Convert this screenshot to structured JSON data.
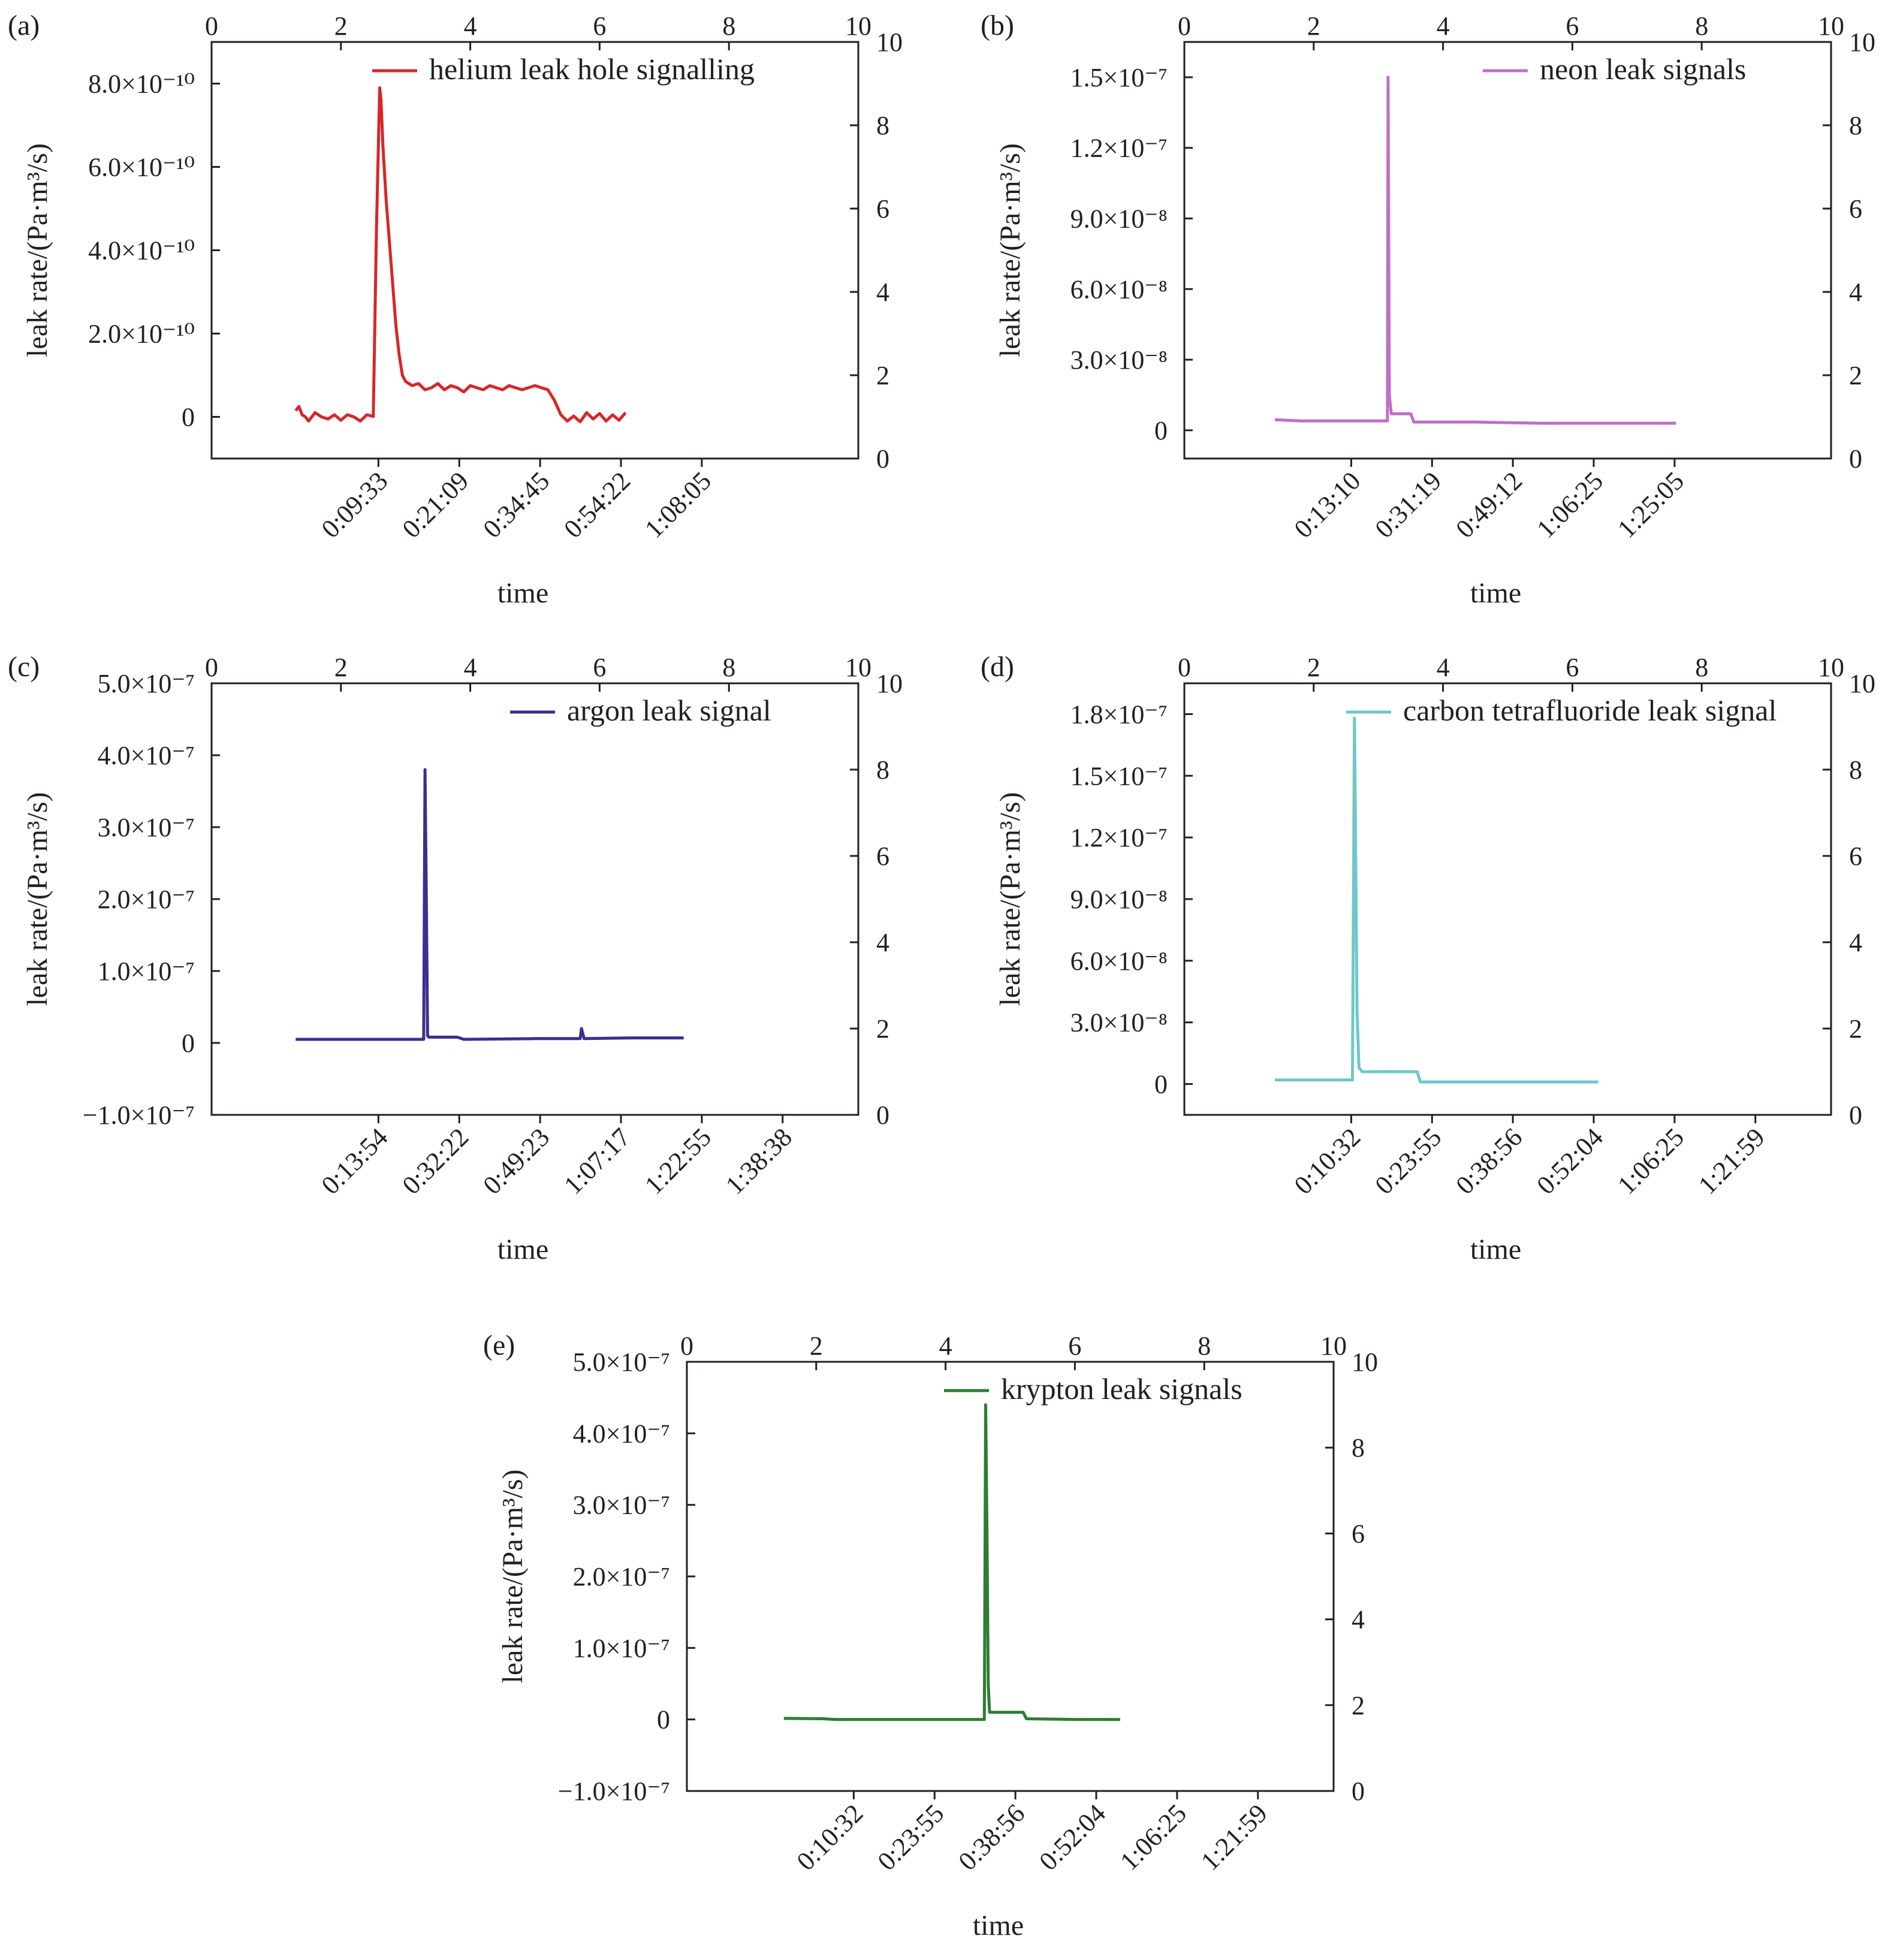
{
  "figure": {
    "panels": [
      {
        "letter": "(a)",
        "legend": "helium leak hole signalling",
        "color": "#d62728",
        "ylabel": "leak rate/(Pa·m³/s)",
        "xlabel": "time",
        "top_ticks": [
          "0",
          "2",
          "4",
          "6",
          "8",
          "10"
        ],
        "right_ticks": [
          "0",
          "2",
          "4",
          "6",
          "8",
          "10"
        ],
        "y_ticks": [
          {
            "v": 0,
            "label": "0"
          },
          {
            "v": 2e-10,
            "label": "2.0×10⁻¹⁰"
          },
          {
            "v": 4e-10,
            "label": "4.0×10⁻¹⁰"
          },
          {
            "v": 6e-10,
            "label": "6.0×10⁻¹⁰"
          },
          {
            "v": 8e-10,
            "label": "8.0×10⁻¹⁰"
          }
        ],
        "x_ticks": [
          "0:09:33",
          "0:21:09",
          "0:34:45",
          "0:54:22",
          "1:08:05"
        ]
      },
      {
        "letter": "(b)",
        "legend": "neon leak signals",
        "color": "#bf6fc8",
        "ylabel": "leak rate/(Pa·m³/s)",
        "xlabel": "time",
        "top_ticks": [
          "0",
          "2",
          "4",
          "6",
          "8",
          "10"
        ],
        "right_ticks": [
          "0",
          "2",
          "4",
          "6",
          "8",
          "10"
        ],
        "y_ticks": [
          {
            "v": 0,
            "label": "0"
          },
          {
            "v": 3e-08,
            "label": "3.0×10⁻⁸"
          },
          {
            "v": 6e-08,
            "label": "6.0×10⁻⁸"
          },
          {
            "v": 9e-08,
            "label": "9.0×10⁻⁸"
          },
          {
            "v": 1.2e-07,
            "label": "1.2×10⁻⁷"
          },
          {
            "v": 1.5e-07,
            "label": "1.5×10⁻⁷"
          }
        ],
        "x_ticks": [
          "0:13:10",
          "0:31:19",
          "0:49:12",
          "1:06:25",
          "1:25:05"
        ]
      },
      {
        "letter": "(c)",
        "legend": "argon leak signal",
        "color": "#3b2f8f",
        "ylabel": "leak rate/(Pa·m³/s)",
        "xlabel": "time",
        "top_ticks": [
          "0",
          "2",
          "4",
          "6",
          "8",
          "10"
        ],
        "right_ticks": [
          "0",
          "2",
          "4",
          "6",
          "8",
          "10"
        ],
        "y_ticks": [
          {
            "v": -1e-07,
            "label": "−1.0×10⁻⁷"
          },
          {
            "v": 0,
            "label": "0"
          },
          {
            "v": 1e-07,
            "label": "1.0×10⁻⁷"
          },
          {
            "v": 2e-07,
            "label": "2.0×10⁻⁷"
          },
          {
            "v": 3e-07,
            "label": "3.0×10⁻⁷"
          },
          {
            "v": 4e-07,
            "label": "4.0×10⁻⁷"
          },
          {
            "v": 5e-07,
            "label": "5.0×10⁻⁷"
          }
        ],
        "x_ticks": [
          "0:13:54",
          "0:32:22",
          "0:49:23",
          "1:07:17",
          "1:22:55",
          "1:38:38"
        ]
      },
      {
        "letter": "(d)",
        "legend": "carbon tetrafluoride leak signal",
        "color": "#6ec8c8",
        "ylabel": "leak rate/(Pa·m³/s)",
        "xlabel": "time",
        "top_ticks": [
          "0",
          "2",
          "4",
          "6",
          "8",
          "10"
        ],
        "right_ticks": [
          "0",
          "2",
          "4",
          "6",
          "8",
          "10"
        ],
        "y_ticks": [
          {
            "v": 0,
            "label": "0"
          },
          {
            "v": 3e-08,
            "label": "3.0×10⁻⁸"
          },
          {
            "v": 6e-08,
            "label": "6.0×10⁻⁸"
          },
          {
            "v": 9e-08,
            "label": "9.0×10⁻⁸"
          },
          {
            "v": 1.2e-07,
            "label": "1.2×10⁻⁷"
          },
          {
            "v": 1.5e-07,
            "label": "1.5×10⁻⁷"
          },
          {
            "v": 1.8e-07,
            "label": "1.8×10⁻⁷"
          }
        ],
        "x_ticks": [
          "0:10:32",
          "0:23:55",
          "0:38:56",
          "0:52:04",
          "1:06:25",
          "1:21:59"
        ]
      },
      {
        "letter": "(e)",
        "legend": "krypton leak signals",
        "color": "#2e7d32",
        "ylabel": "leak rate/(Pa·m³/s)",
        "xlabel": "time",
        "top_ticks": [
          "0",
          "2",
          "4",
          "6",
          "8",
          "10"
        ],
        "right_ticks": [
          "0",
          "2",
          "4",
          "6",
          "8",
          "10"
        ],
        "y_ticks": [
          {
            "v": -1e-07,
            "label": "−1.0×10⁻⁷"
          },
          {
            "v": 0,
            "label": "0"
          },
          {
            "v": 1e-07,
            "label": "1.0×10⁻⁷"
          },
          {
            "v": 2e-07,
            "label": "2.0×10⁻⁷"
          },
          {
            "v": 3e-07,
            "label": "3.0×10⁻⁷"
          },
          {
            "v": 4e-07,
            "label": "4.0×10⁻⁷"
          },
          {
            "v": 5e-07,
            "label": "5.0×10⁻⁷"
          }
        ],
        "x_ticks": [
          "0:10:32",
          "0:23:55",
          "0:38:56",
          "0:52:04",
          "1:06:25",
          "1:21:59"
        ]
      }
    ]
  },
  "chart_data": [
    {
      "type": "line",
      "title": "",
      "panel": "(a)",
      "xlabel": "time",
      "ylabel": "leak rate/(Pa·m³/s)",
      "xlim": [
        0,
        10
      ],
      "ylim": [
        -1e-10,
        9e-10
      ],
      "y2lim": [
        0,
        10
      ],
      "legend": "top-right",
      "grid": false,
      "series": [
        {
          "name": "helium leak hole signalling",
          "x": [
            1.3,
            1.35,
            1.4,
            1.45,
            1.5,
            1.6,
            1.7,
            1.8,
            1.9,
            2.0,
            2.1,
            2.2,
            2.3,
            2.4,
            2.5,
            2.55,
            2.6,
            2.62,
            2.65,
            2.7,
            2.75,
            2.8,
            2.85,
            2.9,
            2.95,
            3.0,
            3.1,
            3.2,
            3.3,
            3.4,
            3.5,
            3.6,
            3.7,
            3.8,
            3.9,
            4.0,
            4.1,
            4.2,
            4.3,
            4.4,
            4.5,
            4.6,
            4.7,
            4.8,
            4.9,
            5.0,
            5.1,
            5.2,
            5.3,
            5.4,
            5.5,
            5.6,
            5.7,
            5.8,
            5.9,
            6.0,
            6.1,
            6.2,
            6.3,
            6.4
          ],
          "y": [
            1.5e-11,
            2.5e-11,
            5e-12,
            0,
            -1e-11,
            1e-11,
            0,
            -5e-12,
            5e-12,
            -8e-12,
            5e-12,
            0,
            -1e-11,
            5e-12,
            1e-12,
            4.5e-10,
            7.9e-10,
            7.6e-10,
            6.5e-10,
            5.2e-10,
            4.2e-10,
            3.2e-10,
            2.2e-10,
            1.5e-10,
            1e-10,
            8.5e-11,
            7.5e-11,
            8e-11,
            6.5e-11,
            7e-11,
            8e-11,
            6.5e-11,
            7.5e-11,
            7e-11,
            6e-11,
            7.5e-11,
            7e-11,
            6.5e-11,
            7.5e-11,
            7e-11,
            6.5e-11,
            7.5e-11,
            7e-11,
            6.5e-11,
            7e-11,
            7.5e-11,
            7e-11,
            6.5e-11,
            4e-11,
            5e-12,
            -1e-11,
            2e-12,
            -1.2e-11,
            1e-11,
            -5e-12,
            8e-12,
            -1e-11,
            5e-12,
            -8e-12,
            1e-11
          ]
        }
      ]
    },
    {
      "type": "line",
      "title": "",
      "panel": "(b)",
      "xlabel": "time",
      "ylabel": "leak rate/(Pa·m³/s)",
      "xlim": [
        0,
        10
      ],
      "ylim": [
        -1.2e-08,
        1.65e-07
      ],
      "y2lim": [
        0,
        10
      ],
      "legend": "top-right",
      "grid": false,
      "series": [
        {
          "name": "neon leak signals",
          "x": [
            1.4,
            1.8,
            2.5,
            3.14,
            3.15,
            3.17,
            3.2,
            3.22,
            3.5,
            3.55,
            4.5,
            5.5,
            6.5,
            7.6
          ],
          "y": [
            4.5e-09,
            4e-09,
            4e-09,
            4e-09,
            1.5e-07,
            1.5e-08,
            7e-09,
            7e-09,
            7e-09,
            3.5e-09,
            3.5e-09,
            3e-09,
            3e-09,
            3e-09
          ]
        }
      ]
    },
    {
      "type": "line",
      "title": "",
      "panel": "(c)",
      "xlabel": "time",
      "ylabel": "leak rate/(Pa·m³/s)",
      "xlim": [
        0,
        10
      ],
      "ylim": [
        -1e-07,
        5e-07
      ],
      "y2lim": [
        0,
        10
      ],
      "legend": "top-right",
      "grid": false,
      "series": [
        {
          "name": "argon leak signal",
          "x": [
            1.3,
            2.0,
            3.0,
            3.2,
            3.28,
            3.3,
            3.32,
            3.34,
            3.36,
            3.4,
            3.8,
            3.9,
            5.0,
            5.7,
            5.72,
            5.76,
            6.5,
            7.0,
            7.3
          ],
          "y": [
            5e-09,
            5e-09,
            5e-09,
            5e-09,
            5e-09,
            3.8e-07,
            2.1e-07,
            1e-08,
            8e-09,
            8e-09,
            8e-09,
            5e-09,
            6e-09,
            6e-09,
            2e-08,
            6e-09,
            7e-09,
            7e-09,
            7e-09
          ]
        }
      ]
    },
    {
      "type": "line",
      "title": "",
      "panel": "(d)",
      "xlabel": "time",
      "ylabel": "leak rate/(Pa·m³/s)",
      "xlim": [
        0,
        10
      ],
      "ylim": [
        -1.5e-08,
        1.95e-07
      ],
      "y2lim": [
        0,
        10
      ],
      "legend": "top",
      "grid": false,
      "series": [
        {
          "name": "carbon tetrafluoride leak signal",
          "x": [
            1.4,
            2.0,
            2.6,
            2.63,
            2.65,
            2.67,
            2.7,
            2.75,
            3.6,
            3.65,
            4.5,
            5.5,
            6.4
          ],
          "y": [
            2e-09,
            2e-09,
            2e-09,
            1.78e-07,
            1.1e-07,
            3.6e-08,
            8e-09,
            6e-09,
            6e-09,
            1e-09,
            1e-09,
            1e-09,
            1e-09
          ]
        }
      ]
    },
    {
      "type": "line",
      "title": "",
      "panel": "(e)",
      "xlabel": "time",
      "ylabel": "leak rate/(Pa·m³/s)",
      "xlim": [
        0,
        10
      ],
      "ylim": [
        -1e-07,
        5e-07
      ],
      "y2lim": [
        0,
        10
      ],
      "legend": "top-right",
      "grid": false,
      "series": [
        {
          "name": "krypton leak signals",
          "x": [
            1.5,
            2.1,
            2.3,
            3.0,
            4.0,
            4.6,
            4.62,
            4.64,
            4.66,
            4.68,
            4.7,
            5.2,
            5.25,
            6.0,
            6.7
          ],
          "y": [
            1.5e-09,
            1e-09,
            0,
            0,
            0,
            0,
            4.4e-07,
            2.6e-07,
            5e-08,
            1e-08,
            1e-08,
            1e-08,
            1e-09,
            0,
            0
          ]
        }
      ]
    }
  ]
}
